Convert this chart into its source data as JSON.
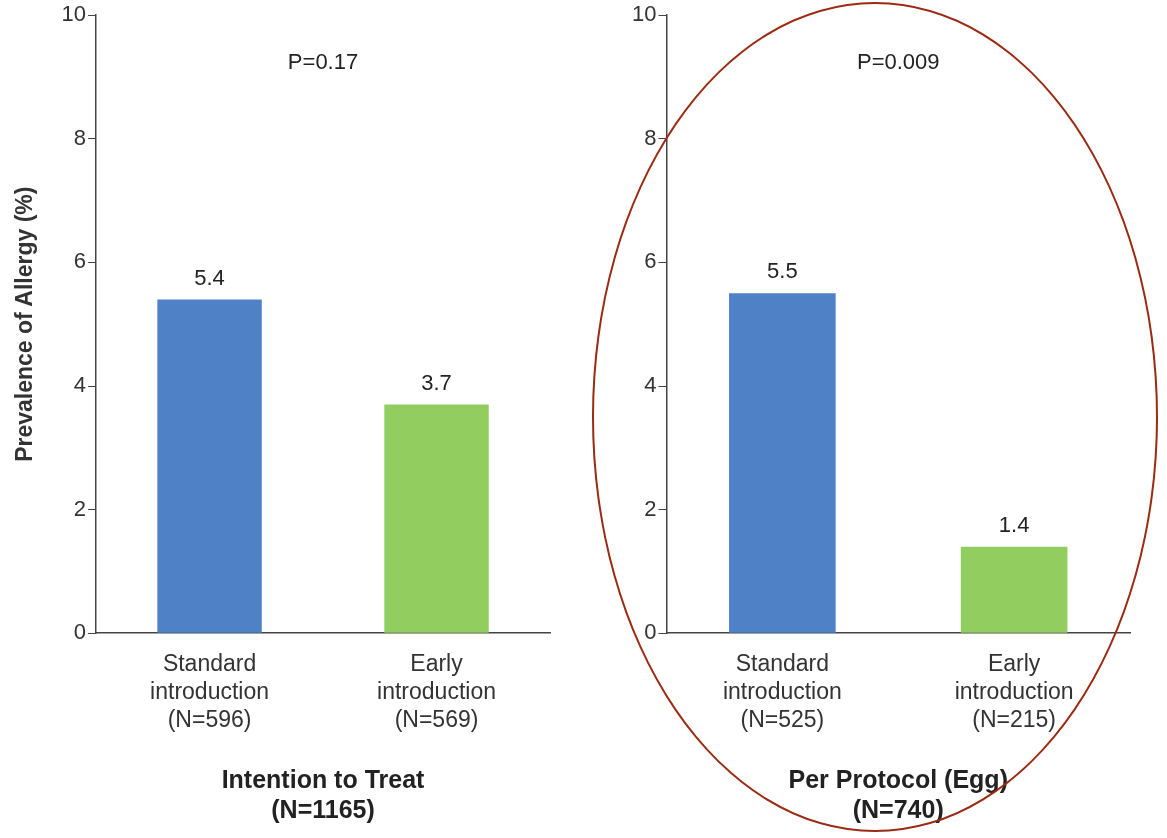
{
  "chart_data": [
    {
      "type": "bar",
      "categories": [
        "Standard\nintroduction\n(N=596)",
        "Early\nintroduction\n(N=569)"
      ],
      "values": [
        5.4,
        3.7
      ],
      "colors": [
        "#4f81c7",
        "#92cd5f"
      ],
      "ylabel": "Prevalence of Allergy (%)",
      "xlabel": "Intention to Treat\n(N=1165)",
      "ylim": [
        0,
        10
      ],
      "yticks": [
        0,
        2,
        4,
        6,
        8,
        10
      ],
      "grid": false,
      "data_labels": true,
      "annotations": [
        "P=0.17"
      ],
      "legend": false
    },
    {
      "type": "bar",
      "categories": [
        "Standard\nintroduction\n(N=525)",
        "Early\nintroduction\n(N=215)"
      ],
      "values": [
        5.5,
        1.4
      ],
      "colors": [
        "#4f81c7",
        "#92cd5f"
      ],
      "xlabel": "Per Protocol (Egg)\n(N=740)",
      "ylim": [
        0,
        10
      ],
      "yticks": [
        0,
        2,
        4,
        6,
        8,
        10
      ],
      "grid": false,
      "data_labels": true,
      "annotations": [
        "P=0.009"
      ],
      "legend": false
    }
  ]
}
